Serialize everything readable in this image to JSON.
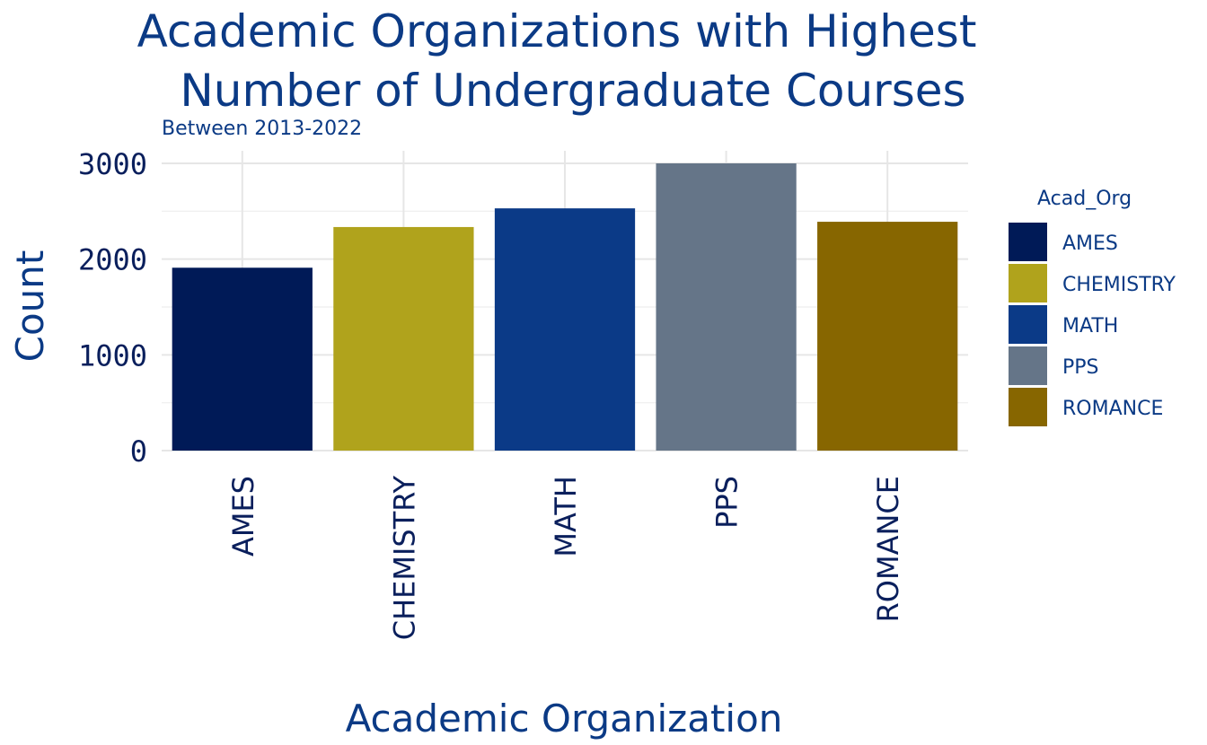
{
  "chart_data": {
    "type": "bar",
    "title_lines": [
      "Academic Organizations with Highest",
      "Number of Undergraduate Courses"
    ],
    "subtitle": "Between 2013-2022",
    "xlabel": "Academic Organization",
    "ylabel": "Count",
    "categories": [
      "AMES",
      "CHEMISTRY",
      "MATH",
      "PPS",
      "ROMANCE"
    ],
    "values": [
      1910,
      2335,
      2530,
      3000,
      2390
    ],
    "colors": [
      "#001a57",
      "#b0a31c",
      "#0b3a87",
      "#657588",
      "#876600"
    ],
    "ylim": [
      0,
      3000
    ],
    "y_ticks": [
      0,
      1000,
      2000,
      3000
    ],
    "y_tick_labels": [
      "0",
      "1000",
      "2000",
      "3000"
    ],
    "grid": true,
    "legend": {
      "title": "Acad_Org",
      "placement": "right",
      "entries": [
        "AMES",
        "CHEMISTRY",
        "MATH",
        "PPS",
        "ROMANCE"
      ]
    }
  }
}
